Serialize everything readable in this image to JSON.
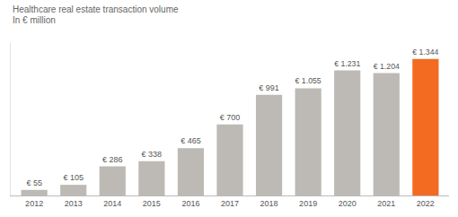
{
  "chart_data": {
    "type": "bar",
    "title": "Healthcare real estate transaction volume",
    "subtitle": "In € million",
    "categories": [
      "2012",
      "2013",
      "2014",
      "2015",
      "2016",
      "2017",
      "2018",
      "2019",
      "2020",
      "2021",
      "2022"
    ],
    "values": [
      55,
      105,
      286,
      338,
      465,
      700,
      991,
      1055,
      1231,
      1204,
      1344
    ],
    "value_labels": [
      "€ 55",
      "€ 105",
      "€ 286",
      "€ 338",
      "€ 465",
      "€ 700",
      "€ 991",
      "€ 1.055",
      "€ 1.231",
      "€ 1.204",
      "€ 1.344"
    ],
    "colors": [
      "#bdbab6",
      "#bdbab6",
      "#bdbab6",
      "#bdbab6",
      "#bdbab6",
      "#bdbab6",
      "#bdbab6",
      "#bdbab6",
      "#bdbab6",
      "#bdbab6",
      "#f26b21"
    ],
    "ylim": [
      0,
      1500
    ],
    "grid": false,
    "data_labels": true,
    "tick_labels": "x"
  }
}
